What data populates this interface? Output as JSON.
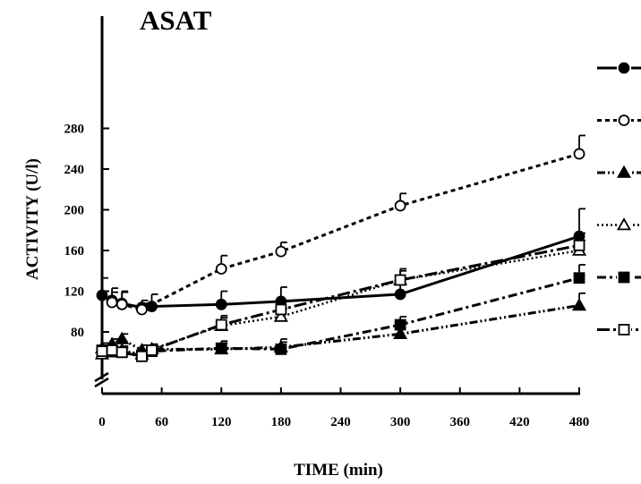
{
  "chart_data": {
    "type": "line",
    "title": "ASAT",
    "xlabel": "TIME (min)",
    "ylabel": "ACTIVITY (U/l)",
    "xlim": [
      0,
      480
    ],
    "ylim": [
      45,
      280
    ],
    "y_axis_break": true,
    "x_ticks": [
      0,
      60,
      120,
      180,
      240,
      300,
      360,
      420,
      480
    ],
    "y_ticks": [
      80,
      120,
      160,
      200,
      240,
      280
    ],
    "grid": false,
    "legend": "right, symbols only",
    "series": [
      {
        "marker": "filled-circle",
        "line": "solid",
        "x": [
          0,
          10,
          20,
          40,
          50,
          120,
          180,
          300,
          480
        ],
        "y": [
          116,
          111,
          108,
          104,
          105,
          107,
          110,
          117,
          174
        ],
        "error": [
          17,
          12,
          12,
          7,
          12,
          13,
          14,
          15,
          27
        ]
      },
      {
        "marker": "open-circle",
        "line": "dashed",
        "x": [
          10,
          20,
          40,
          120,
          180,
          300,
          480
        ],
        "y": [
          109,
          107,
          102,
          142,
          159,
          204,
          255
        ],
        "error": [
          10,
          12,
          6,
          13,
          9,
          12,
          18
        ]
      },
      {
        "marker": "filled-triangle",
        "line": "dash-dot-dot",
        "x": [
          0,
          10,
          20,
          40,
          50,
          120,
          180,
          300,
          480
        ],
        "y": [
          64,
          68,
          73,
          62,
          63,
          63,
          65,
          78,
          106
        ],
        "error": [
          5,
          5,
          5,
          5,
          5,
          6,
          8,
          12,
          12
        ]
      },
      {
        "marker": "open-triangle",
        "line": "dotted",
        "x": [
          0,
          10,
          20,
          40,
          50,
          120,
          180,
          300,
          480
        ],
        "y": [
          58,
          60,
          62,
          58,
          63,
          86,
          95,
          131,
          160
        ],
        "error": [
          4,
          4,
          4,
          4,
          4,
          8,
          8,
          9,
          10
        ]
      },
      {
        "marker": "filled-square",
        "line": "dash-dot",
        "x": [
          0,
          10,
          20,
          40,
          50,
          120,
          180,
          300,
          480
        ],
        "y": [
          62,
          61,
          60,
          57,
          61,
          64,
          63,
          87,
          133
        ],
        "error": [
          5,
          5,
          5,
          5,
          5,
          7,
          7,
          8,
          13
        ]
      },
      {
        "marker": "open-square",
        "line": "long-dash-dot",
        "x": [
          0,
          10,
          20,
          40,
          50,
          120,
          180,
          300,
          480
        ],
        "y": [
          61,
          62,
          60,
          56,
          62,
          87,
          102,
          131,
          165
        ],
        "error": [
          4,
          4,
          4,
          4,
          4,
          9,
          9,
          11,
          12
        ]
      }
    ]
  }
}
